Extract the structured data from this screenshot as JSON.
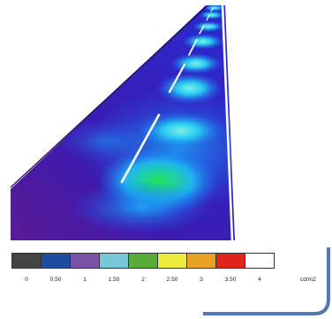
{
  "legend": {
    "colors": [
      "#444444",
      "#1f4d9e",
      "#7b52a6",
      "#76c7d8",
      "#5aac3a",
      "#ecea3a",
      "#eaa224",
      "#e0251f",
      "#ffffff"
    ],
    "labels": [
      "0",
      "0.50",
      "1",
      "1.50",
      "2",
      "2.50",
      "3",
      "3.50",
      "4"
    ],
    "unit": "cd/m2"
  }
}
